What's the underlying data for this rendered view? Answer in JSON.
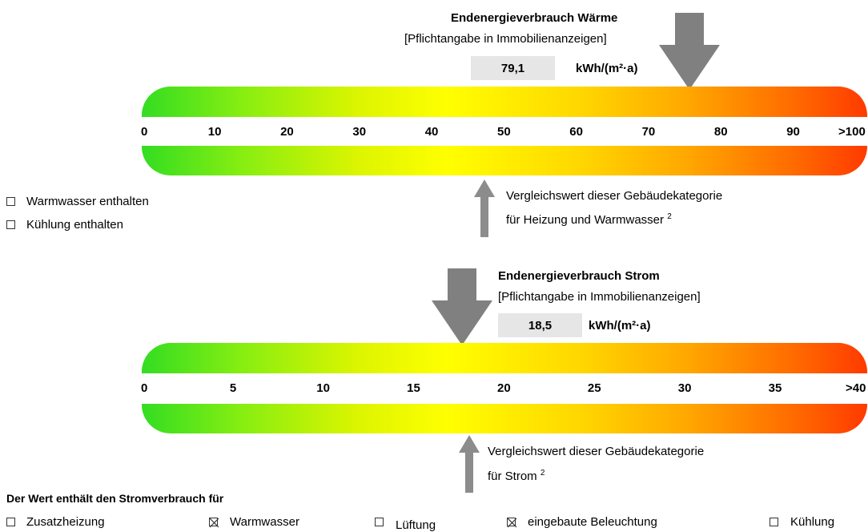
{
  "waerme": {
    "title": "Endenergieverbrauch Wärme",
    "subtitle": "[Pflichtangabe in Immobilienanzeigen]",
    "value": "79,1",
    "unit": "kWh/(m²·a)",
    "value_num": 79.1,
    "compare_num": 50,
    "scale_max": 100,
    "scale_labels": [
      "0",
      "10",
      "20",
      "30",
      "40",
      "50",
      "60",
      "70",
      "80",
      "90",
      ">100"
    ],
    "compare_line1": "Vergleichswert dieser Gebäudekategorie",
    "compare_line2": "für Heizung und Warmwasser",
    "compare_sup": "2"
  },
  "checkboxes_left": [
    {
      "label": "Warmwasser enthalten",
      "checked": false
    },
    {
      "label": "Kühlung enthalten",
      "checked": false
    }
  ],
  "strom": {
    "title": "Endenergieverbrauch Strom",
    "subtitle": "[Pflichtangabe in Immobilienanzeigen]",
    "value": "18,5",
    "unit": "kWh/(m²·a)",
    "value_num": 18.5,
    "compare_num": 19,
    "scale_max": 40,
    "scale_labels": [
      "0",
      "5",
      "10",
      "15",
      "20",
      "25",
      "30",
      "35",
      ">40"
    ],
    "compare_line1": "Vergleichswert dieser Gebäudekategorie",
    "compare_line2": "für Strom",
    "compare_sup": "2"
  },
  "stromverbrauch": {
    "heading": "Der Wert enthält den Stromverbrauch für",
    "items": [
      {
        "label": "Zusatzheizung",
        "checked": false
      },
      {
        "label": "Warmwasser",
        "checked": true
      },
      {
        "label": "Lüftung",
        "checked": false
      },
      {
        "label": "eingebaute Beleuchtung",
        "checked": true
      },
      {
        "label": "Kühlung",
        "checked": false
      }
    ]
  },
  "colors": {
    "arrow_main": "#808080",
    "arrow_compare": "#8c8c8c",
    "value_box": "#e6e6e6"
  }
}
